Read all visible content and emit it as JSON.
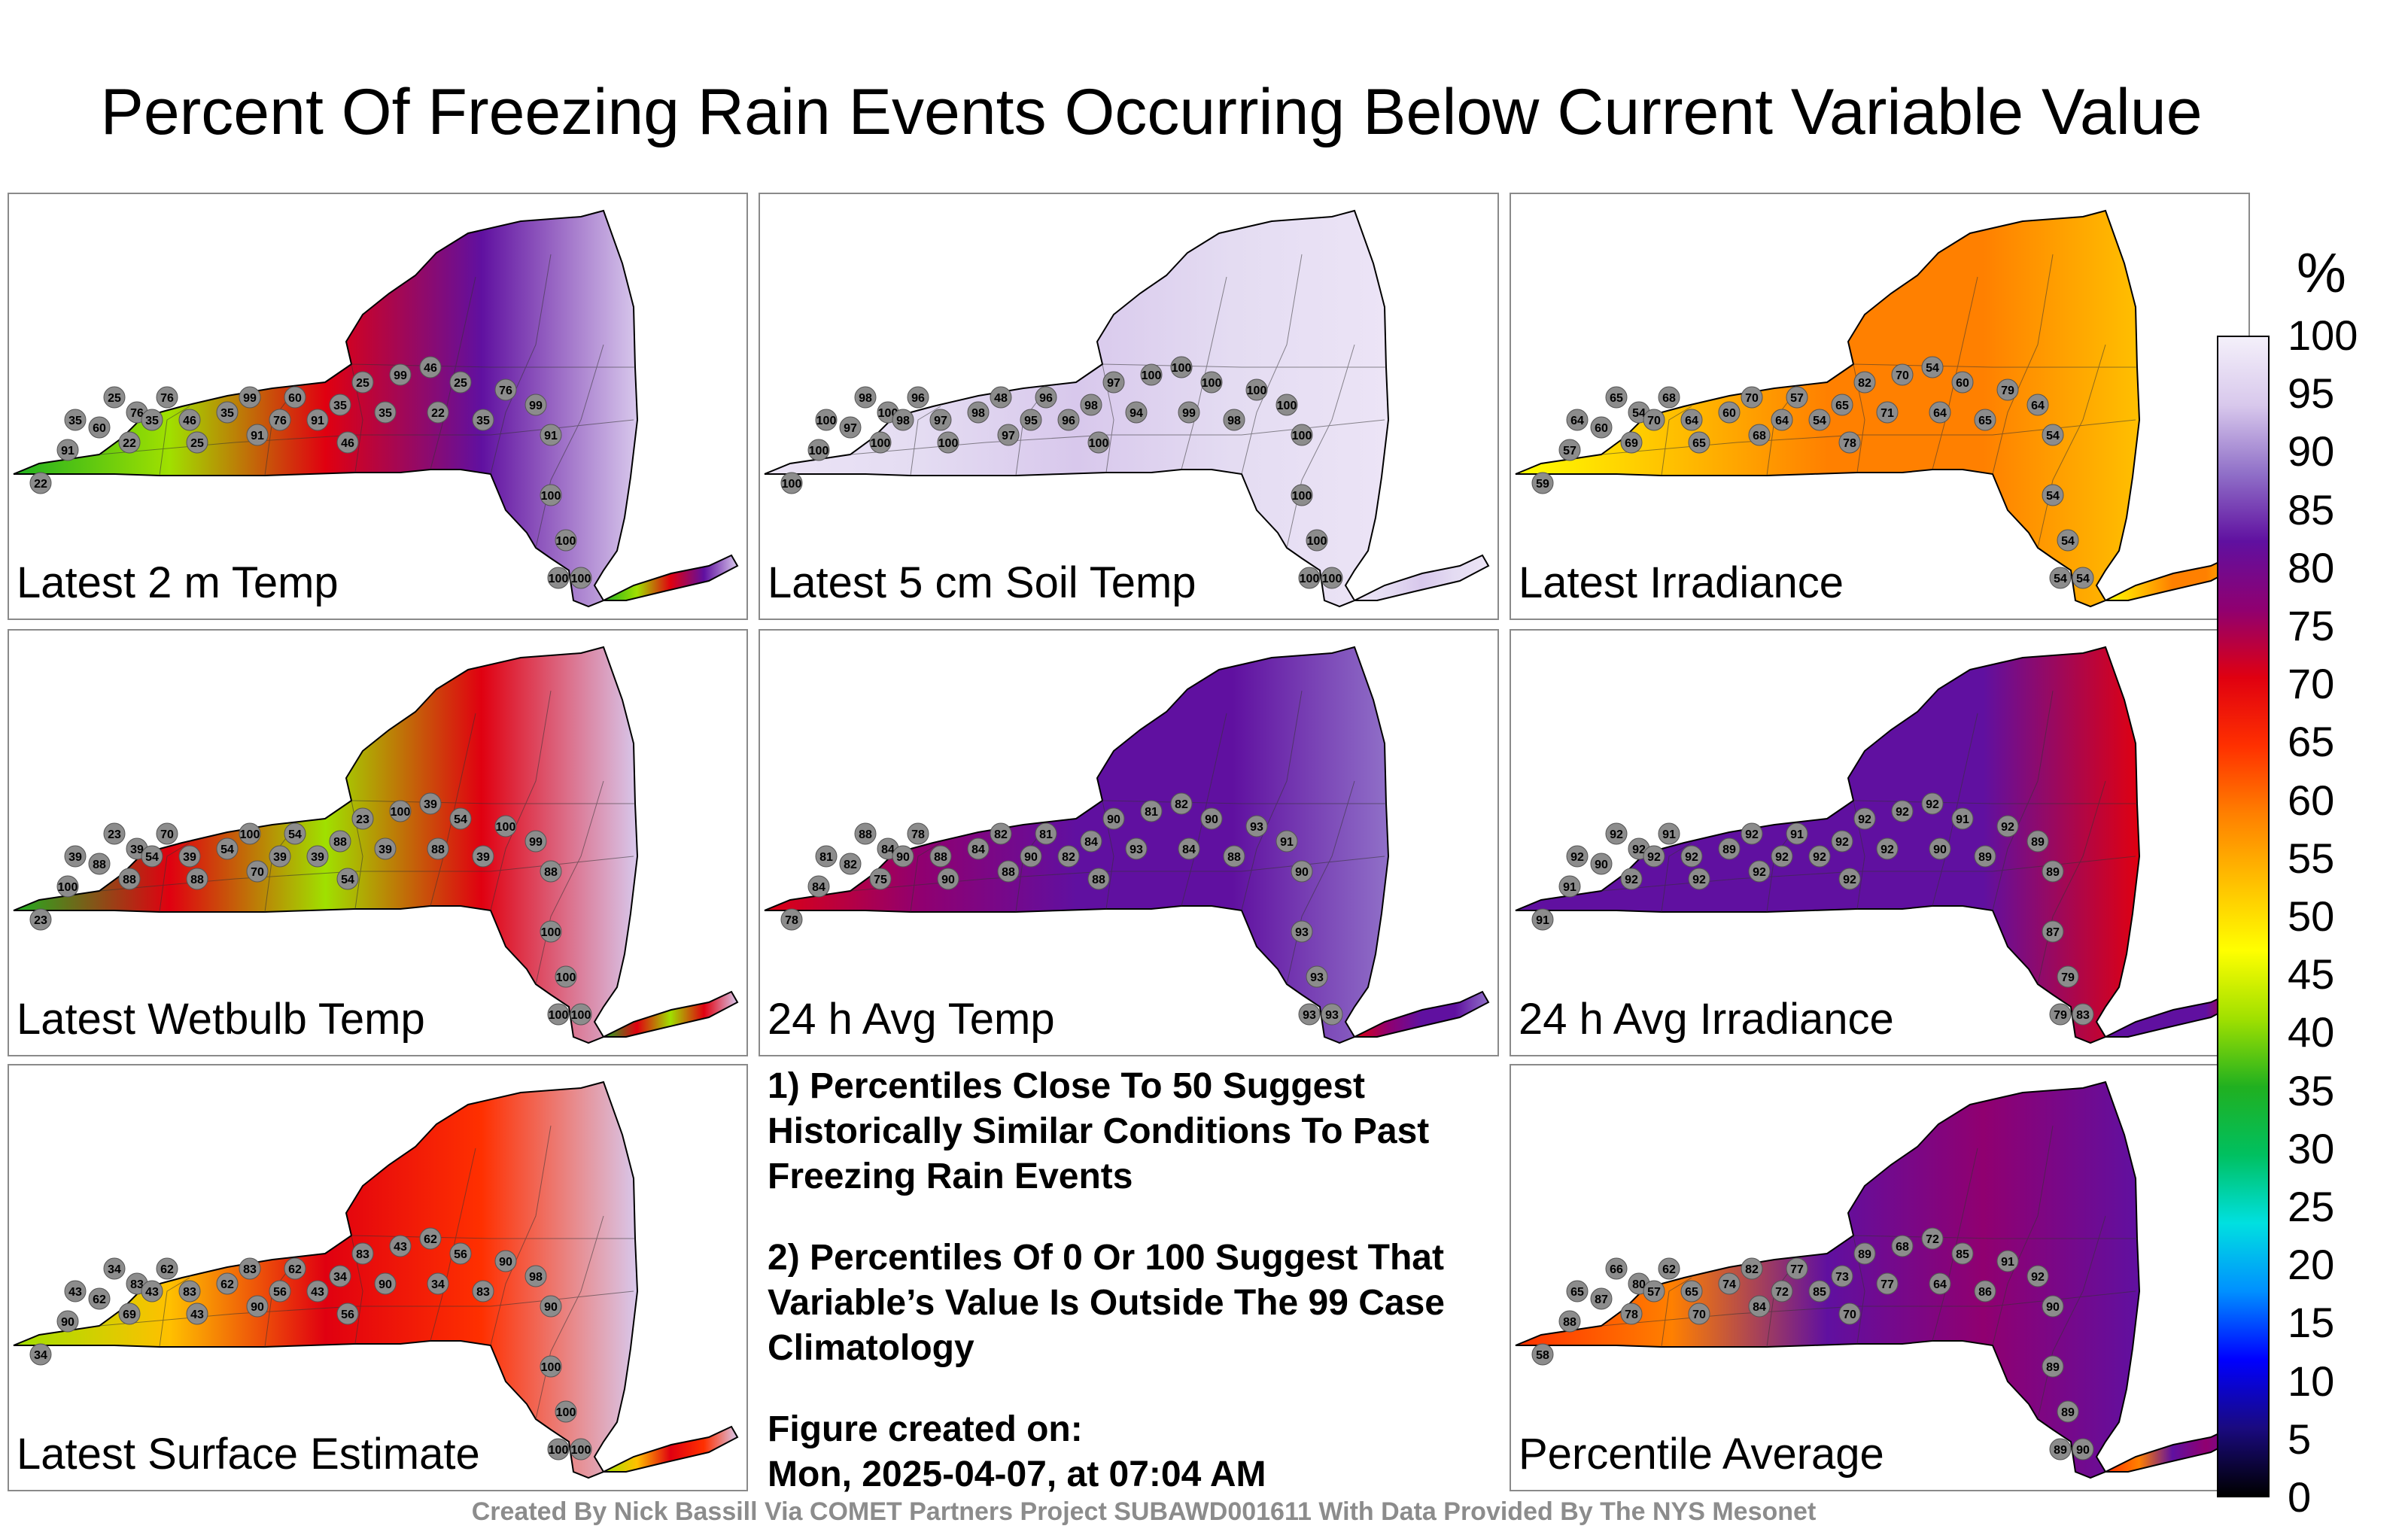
{
  "title": "Percent Of Freezing Rain Events Occurring Below Current Variable Value",
  "colorbar": {
    "unit": "%",
    "ticks": [
      "100",
      "95",
      "90",
      "85",
      "80",
      "75",
      "70",
      "65",
      "60",
      "55",
      "50",
      "45",
      "40",
      "35",
      "30",
      "25",
      "20",
      "15",
      "10",
      "5",
      "0"
    ],
    "stops": [
      "#000000",
      "#1a0a80",
      "#0000ff",
      "#0090ff",
      "#00e0e0",
      "#00c060",
      "#20b020",
      "#a0e000",
      "#ffff00",
      "#ffc000",
      "#ff8000",
      "#ff3000",
      "#e00010",
      "#900070",
      "#6010a0",
      "#9070c8",
      "#d8c8ec",
      "#f4f0fa"
    ]
  },
  "panels": [
    {
      "label": "Latest 2 m Temp",
      "gradient": [
        "#20b020",
        "#a0e000",
        "#e00010",
        "#6010a0",
        "#d8c8ec"
      ],
      "stations": [
        "22",
        "91",
        "35",
        "60",
        "25",
        "76",
        "22",
        "35",
        "76",
        "46",
        "25",
        "35",
        "99",
        "91",
        "76",
        "60",
        "91",
        "35",
        "46",
        "25",
        "35",
        "99",
        "46",
        "22",
        "25",
        "35",
        "76",
        "99",
        "91",
        "100",
        "100",
        "100",
        "100"
      ]
    },
    {
      "label": "Latest 5 cm Soil Temp",
      "gradient": [
        "#ece4f6",
        "#e4dcf2",
        "#d8c8ec",
        "#e4dcf2",
        "#ece4f6"
      ],
      "stations": [
        "100",
        "100",
        "100",
        "97",
        "98",
        "100",
        "100",
        "98",
        "96",
        "97",
        "100",
        "98",
        "48",
        "97",
        "95",
        "96",
        "96",
        "98",
        "100",
        "97",
        "94",
        "100",
        "100",
        "99",
        "100",
        "98",
        "100",
        "100",
        "100",
        "100",
        "100",
        "100",
        "100"
      ]
    },
    {
      "label": "Latest Irradiance",
      "gradient": [
        "#ffff00",
        "#ffc000",
        "#ff8000",
        "#ff8000",
        "#ffc000"
      ],
      "stations": [
        "59",
        "57",
        "64",
        "60",
        "65",
        "54",
        "69",
        "70",
        "68",
        "64",
        "65",
        "60",
        "70",
        "68",
        "64",
        "57",
        "54",
        "65",
        "78",
        "82",
        "71",
        "70",
        "54",
        "64",
        "60",
        "65",
        "79",
        "64",
        "54",
        "54",
        "54",
        "54",
        "54"
      ]
    },
    {
      "label": "Latest Wetbulb Temp",
      "gradient": [
        "#20b020",
        "#e00010",
        "#a0e000",
        "#e00010",
        "#d8c8ec"
      ],
      "stations": [
        "23",
        "100",
        "39",
        "88",
        "23",
        "39",
        "88",
        "54",
        "70",
        "39",
        "88",
        "54",
        "100",
        "70",
        "39",
        "54",
        "39",
        "88",
        "54",
        "23",
        "39",
        "100",
        "39",
        "88",
        "54",
        "39",
        "100",
        "99",
        "88",
        "100",
        "100",
        "100",
        "100"
      ]
    },
    {
      "label": "24 h Avg Temp",
      "gradient": [
        "#e00010",
        "#900070",
        "#6010a0",
        "#6010a0",
        "#9070c8"
      ],
      "stations": [
        "78",
        "84",
        "81",
        "82",
        "88",
        "84",
        "75",
        "90",
        "78",
        "88",
        "90",
        "84",
        "82",
        "88",
        "90",
        "81",
        "82",
        "84",
        "88",
        "90",
        "93",
        "81",
        "82",
        "84",
        "90",
        "88",
        "93",
        "91",
        "90",
        "93",
        "93",
        "93",
        "93"
      ]
    },
    {
      "label": "24 h Avg Irradiance",
      "gradient": [
        "#6010a0",
        "#6010a0",
        "#6010a0",
        "#6010a0",
        "#e00010"
      ],
      "stations": [
        "91",
        "91",
        "92",
        "90",
        "92",
        "92",
        "92",
        "92",
        "91",
        "92",
        "92",
        "89",
        "92",
        "92",
        "92",
        "91",
        "92",
        "92",
        "92",
        "92",
        "92",
        "92",
        "92",
        "90",
        "91",
        "89",
        "92",
        "89",
        "89",
        "87",
        "79",
        "79",
        "83"
      ]
    },
    {
      "label": "Latest Surface Estimate",
      "gradient": [
        "#a0e000",
        "#ffc000",
        "#e00010",
        "#ff3000",
        "#d8c8ec"
      ],
      "stations": [
        "34",
        "90",
        "43",
        "62",
        "34",
        "83",
        "69",
        "43",
        "62",
        "83",
        "43",
        "62",
        "83",
        "90",
        "56",
        "62",
        "43",
        "34",
        "56",
        "83",
        "90",
        "43",
        "62",
        "34",
        "56",
        "83",
        "90",
        "98",
        "90",
        "100",
        "100",
        "100",
        "100"
      ]
    },
    {
      "label": "Percentile Average",
      "gradient": [
        "#ff3000",
        "#ff8000",
        "#6010a0",
        "#900070",
        "#6010a0"
      ],
      "stations": [
        "58",
        "88",
        "65",
        "87",
        "66",
        "80",
        "78",
        "57",
        "62",
        "65",
        "70",
        "74",
        "82",
        "84",
        "72",
        "77",
        "85",
        "73",
        "70",
        "89",
        "77",
        "68",
        "72",
        "64",
        "85",
        "86",
        "91",
        "92",
        "90",
        "89",
        "89",
        "89",
        "90"
      ]
    }
  ],
  "notes": [
    "1) Percentiles Close To 50 Suggest Historically Similar Conditions To Past Freezing Rain Events",
    "2) Percentiles Of 0 Or 100 Suggest That Variable’s Value Is Outside The 99 Case Climatology"
  ],
  "figure_created_label": "Figure created on:",
  "figure_created_value": "Mon, 2025-04-07, at 07:04 AM",
  "credit": "Created By Nick Bassill Via COMET Partners Project SUBAWD001611 With Data Provided By The NYS Mesonet"
}
